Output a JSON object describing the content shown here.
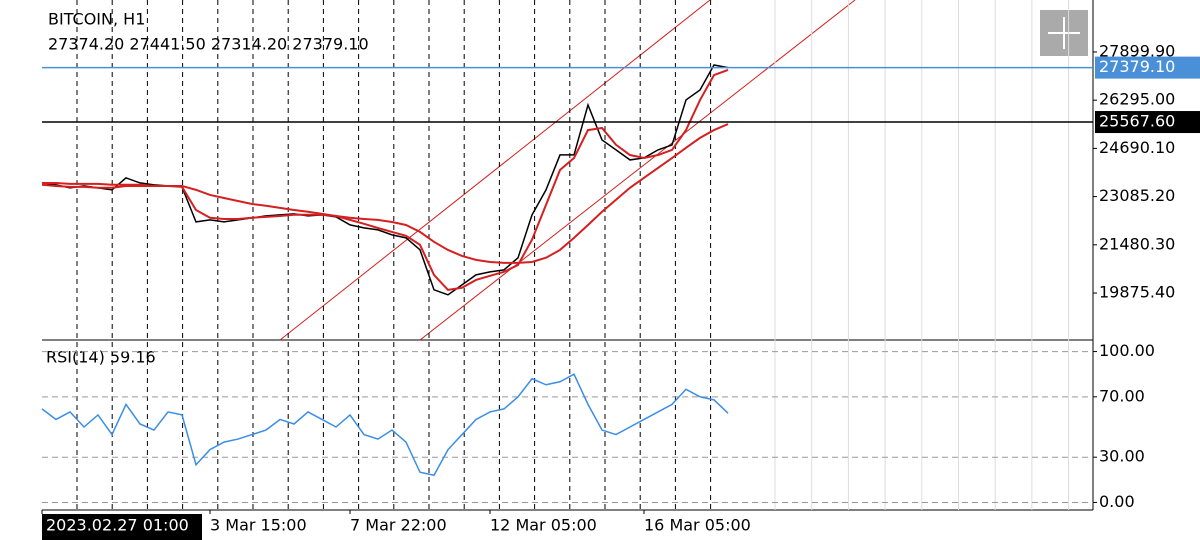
{
  "chart_data": [
    {
      "type": "line",
      "title": "BITCOIN, H1",
      "subtitle": "27374.20 27441.50 27314.20 27379.10",
      "categories": [
        "2023.02.27 01:00",
        null,
        null,
        null,
        null,
        null,
        null,
        null,
        null,
        null,
        null,
        null,
        "3 Mar 15:00",
        null,
        null,
        null,
        null,
        null,
        null,
        null,
        null,
        null,
        "7 Mar 22:00",
        null,
        null,
        null,
        null,
        null,
        null,
        null,
        null,
        null,
        "12 Mar 05:00",
        null,
        null,
        null,
        null,
        null,
        null,
        null,
        null,
        null,
        null,
        "16 Mar 05:00",
        null,
        null,
        null,
        null,
        null,
        null
      ],
      "series": [
        {
          "color": "#000000",
          "values": [
            23541,
            23475,
            23375,
            23442,
            23375,
            23309,
            23708,
            23541,
            23475,
            23442,
            23408,
            22244,
            22311,
            22244,
            22311,
            22377,
            22444,
            22477,
            22510,
            22444,
            22477,
            22410,
            22144,
            22044,
            21978,
            21811,
            21712,
            21313,
            19982,
            19815,
            20148,
            20481,
            20581,
            20647,
            21047,
            22477,
            23309,
            24473,
            24473,
            26137,
            24972,
            24640,
            24307,
            24373,
            24640,
            24806,
            26303,
            26636,
            27467,
            27379.1
          ]
        },
        {
          "color": "#d42020",
          "values": [
            23480,
            23440,
            23410,
            23410,
            23380,
            23380,
            23440,
            23440,
            23440,
            23440,
            23410,
            22640,
            22380,
            22340,
            22340,
            22380,
            22410,
            22440,
            22480,
            22480,
            22480,
            22440,
            22310,
            22180,
            22040,
            21910,
            21780,
            21480,
            20480,
            19980,
            20050,
            20310,
            20450,
            20580,
            20810,
            21650,
            22810,
            23970,
            24370,
            25300,
            25370,
            24810,
            24470,
            24370,
            24470,
            24640,
            25300,
            26300,
            27130,
            27300
          ]
        },
        {
          "color": "#d42020",
          "values": [
            23540,
            23540,
            23510,
            23510,
            23510,
            23480,
            23480,
            23480,
            23440,
            23440,
            23440,
            23310,
            23140,
            23040,
            22940,
            22840,
            22780,
            22710,
            22640,
            22580,
            22510,
            22440,
            22380,
            22340,
            22310,
            22240,
            22140,
            21910,
            21580,
            21310,
            21110,
            20980,
            20910,
            20880,
            20880,
            20910,
            21050,
            21310,
            21710,
            22140,
            22580,
            22980,
            23380,
            23710,
            24040,
            24370,
            24710,
            25040,
            25300,
            25500
          ]
        }
      ],
      "ylim": [
        18312,
        29630
      ],
      "yticks": [
        {
          "value": 27899.9,
          "label": "27899.90"
        },
        {
          "value": 26295,
          "label": "26295.00"
        },
        {
          "value": 24690.1,
          "label": "24690.10"
        },
        {
          "value": 23085.2,
          "label": "23085.20"
        },
        {
          "value": 21480.3,
          "label": "21480.30"
        },
        {
          "value": 19875.4,
          "label": "19875.40"
        }
      ],
      "grid": false,
      "price_lines": [
        {
          "value": 27379.1,
          "label": "27379.10",
          "color": "#4a90d9"
        },
        {
          "value": 25567.6,
          "label": "25567.60",
          "color": "#000000"
        }
      ]
    },
    {
      "type": "line",
      "title": "RSI(14) 59.16",
      "series": [
        {
          "color": "#3a8ee6",
          "values": [
            62,
            55,
            60,
            50,
            58,
            45,
            65,
            52,
            48,
            60,
            58,
            25,
            35,
            40,
            42,
            45,
            48,
            55,
            52,
            60,
            55,
            50,
            58,
            45,
            42,
            48,
            40,
            20,
            18,
            35,
            45,
            55,
            60,
            62,
            70,
            82,
            78,
            80,
            85,
            65,
            48,
            45,
            50,
            55,
            60,
            65,
            75,
            70,
            68,
            59.16
          ]
        }
      ],
      "ylim": [
        -5,
        107
      ],
      "yticks": [
        {
          "value": 100,
          "label": "100.00"
        },
        {
          "value": 70,
          "label": "70.00"
        },
        {
          "value": 30,
          "label": "30.00"
        },
        {
          "value": 0,
          "label": "0.00"
        }
      ],
      "grid": true
    }
  ]
}
